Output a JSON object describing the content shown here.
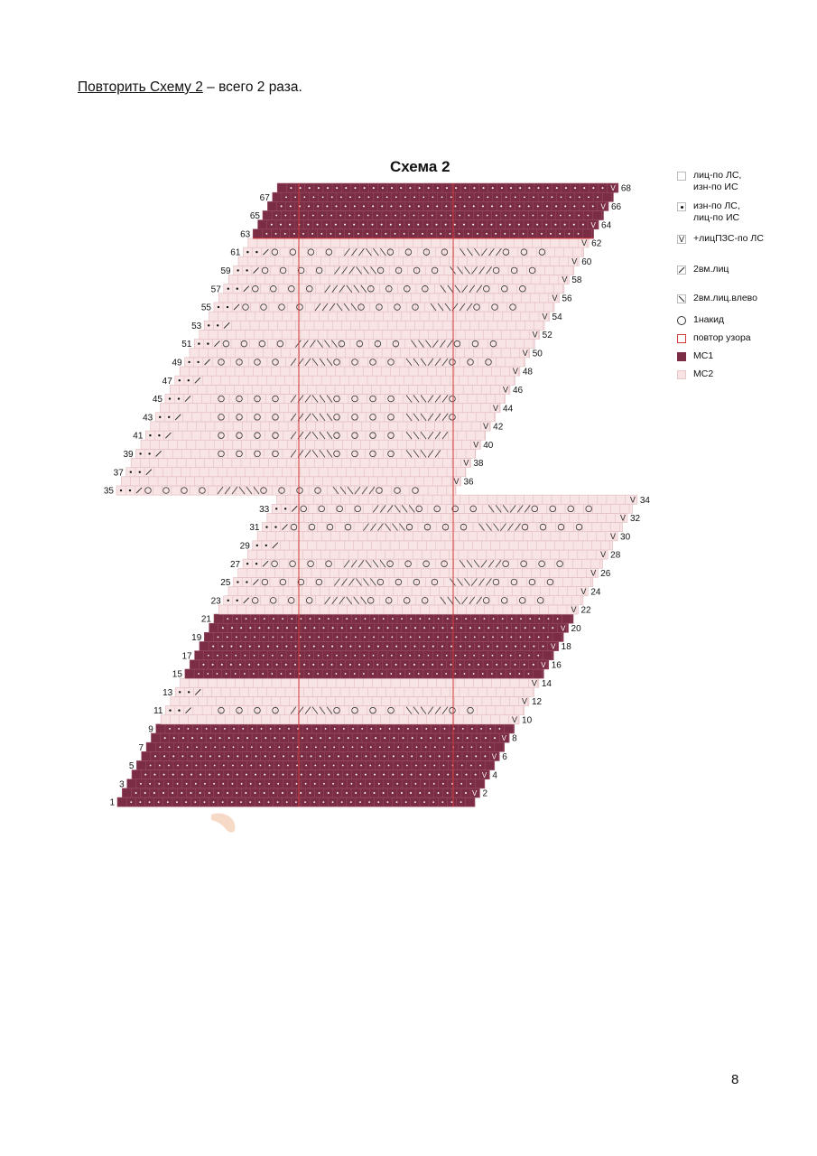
{
  "instruction": {
    "link_text": "Повторить Схему 2",
    "rest_text": " – всего 2 раза."
  },
  "chart_title": "Схема 2",
  "page_number": "8",
  "colors": {
    "mc1": "#7a2d45",
    "mc2": "#f8e4e4",
    "grid_mc2": "#e2b9bd",
    "grid_mc1": "#9c5066",
    "repeat": "#d23a3a"
  },
  "legend": [
    {
      "key": "knit",
      "icon": "empty-square-icon",
      "label": "лиц-по ЛС,\nизн-по ИС"
    },
    {
      "key": "purl",
      "icon": "dot-square-icon",
      "label": "изн-по ЛС,\nлиц-по ИС"
    },
    {
      "key": "inc",
      "icon": "v-icon",
      "label": "+лицПЗС-по ЛС"
    },
    {
      "key": "k2tog",
      "icon": "slash-icon",
      "label": "2вм.лиц"
    },
    {
      "key": "ssk",
      "icon": "backslash-icon",
      "label": "2вм.лиц.влево"
    },
    {
      "key": "yo",
      "icon": "circle-icon",
      "label": "1накид"
    },
    {
      "key": "repeat",
      "icon": "red-outline-square-icon",
      "label": "повтор узора"
    },
    {
      "key": "mc1",
      "icon": "mc1-swatch-icon",
      "label": "МС1"
    },
    {
      "key": "mc2",
      "icon": "mc2-swatch-icon",
      "label": "МС2"
    }
  ],
  "rows": {
    "mc1": [
      1,
      2,
      3,
      4,
      5,
      6,
      7,
      8,
      9,
      15,
      16,
      17,
      18,
      19,
      20,
      21,
      63,
      64,
      65,
      66,
      67,
      68
    ],
    "left_numbered": [
      1,
      3,
      5,
      7,
      9,
      11,
      13,
      15,
      17,
      19,
      21,
      23,
      25,
      27,
      29,
      31,
      33,
      35,
      37,
      39,
      41,
      43,
      45,
      47,
      49,
      51,
      53,
      55,
      57,
      59,
      61,
      63,
      65,
      67
    ],
    "right_numbered": [
      2,
      4,
      6,
      8,
      10,
      12,
      14,
      16,
      18,
      20,
      22,
      24,
      26,
      28,
      30,
      32,
      34,
      36,
      38,
      40,
      42,
      44,
      46,
      48,
      50,
      52,
      54,
      56,
      58,
      60,
      62,
      64,
      66,
      68
    ],
    "lace_rows": [
      11,
      23,
      25,
      27,
      31,
      33,
      39,
      41,
      43,
      45,
      49,
      51,
      55,
      57,
      59,
      61
    ],
    "lace_long_rows": [
      35
    ]
  }
}
